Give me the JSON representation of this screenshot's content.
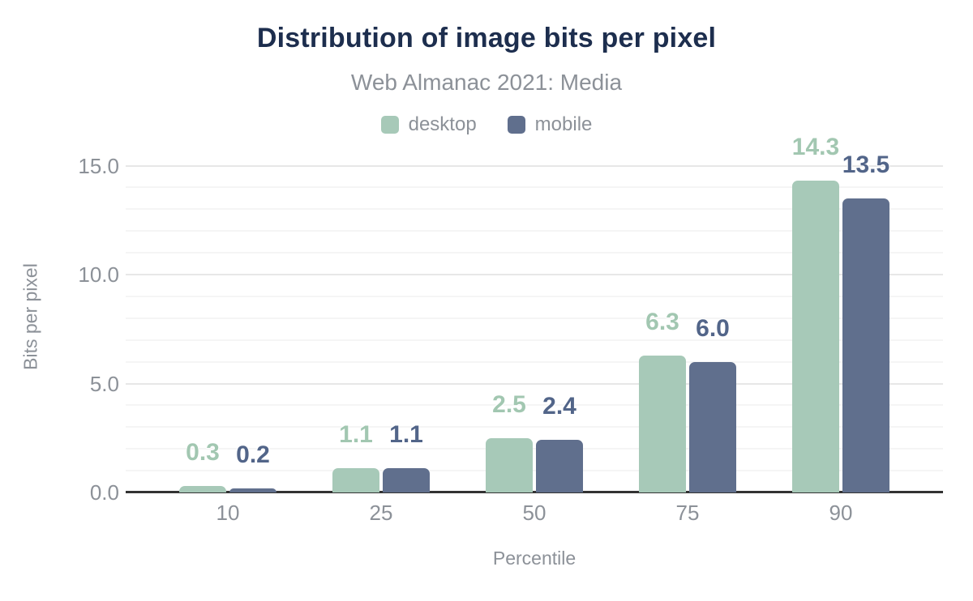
{
  "title": "Distribution of image bits per pixel",
  "subtitle": "Web Almanac 2021: Media",
  "colors": {
    "title_text": "#1d2e4e",
    "muted_text": "#8c9198",
    "desktop": "#a7c9b8",
    "mobile": "#606f8d",
    "desktop_label": "#a2c7b1",
    "mobile_label": "#526589",
    "axis_line": "#333333",
    "grid_major": "#e7e7e7",
    "grid_minor": "#f5f5f5",
    "background": "#ffffff"
  },
  "chart_data": {
    "type": "bar",
    "title": "Distribution of image bits per pixel",
    "subtitle": "Web Almanac 2021: Media",
    "categories": [
      "10",
      "25",
      "50",
      "75",
      "90"
    ],
    "series": [
      {
        "name": "desktop",
        "color": "#a7c9b8",
        "label_color": "#a2c7b1",
        "values": [
          0.3,
          1.1,
          2.5,
          6.3,
          14.3
        ],
        "labels": [
          "0.3",
          "1.1",
          "2.5",
          "6.3",
          "14.3"
        ]
      },
      {
        "name": "mobile",
        "color": "#606f8d",
        "label_color": "#526589",
        "values": [
          0.2,
          1.1,
          2.4,
          6.0,
          13.5
        ],
        "labels": [
          "0.2",
          "1.1",
          "2.4",
          "6.0",
          "13.5"
        ]
      }
    ],
    "xlabel": "Percentile",
    "ylabel": "Bits per pixel",
    "ylim": [
      0,
      16.1
    ],
    "yticks": [
      0,
      5,
      10,
      15
    ],
    "ytick_labels": [
      "0.0",
      "5.0",
      "10.0",
      "15.0"
    ],
    "grid": "horizontal, minor every 1, major every 5",
    "legend_position": "top-center",
    "value_labels": "above bars, colored per series"
  }
}
